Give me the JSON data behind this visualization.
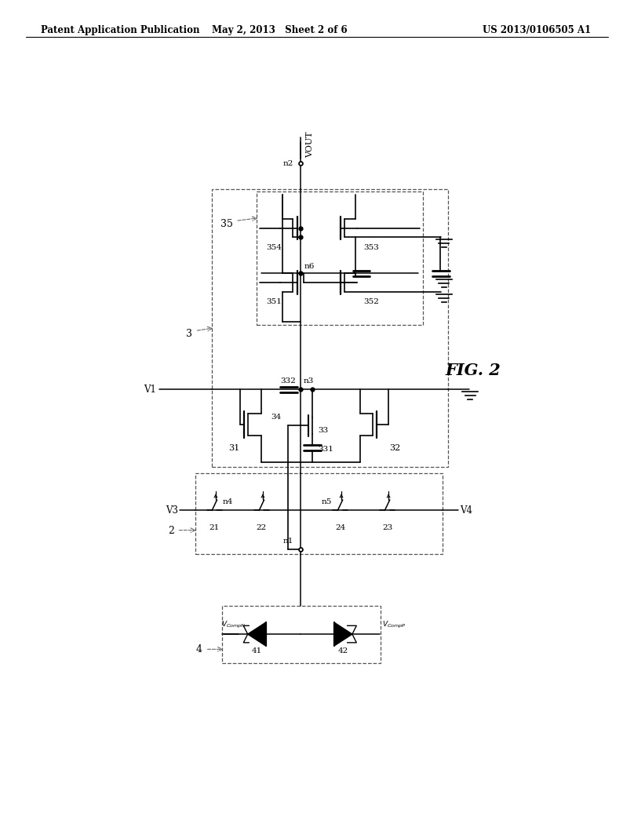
{
  "header_left": "Patent Application Publication",
  "header_mid": "May 2, 2013   Sheet 2 of 6",
  "header_right": "US 2013/0106505 A1",
  "fig_label": "FIG. 2",
  "bg": "#ffffff",
  "fig_w": 10.24,
  "fig_h": 13.2
}
